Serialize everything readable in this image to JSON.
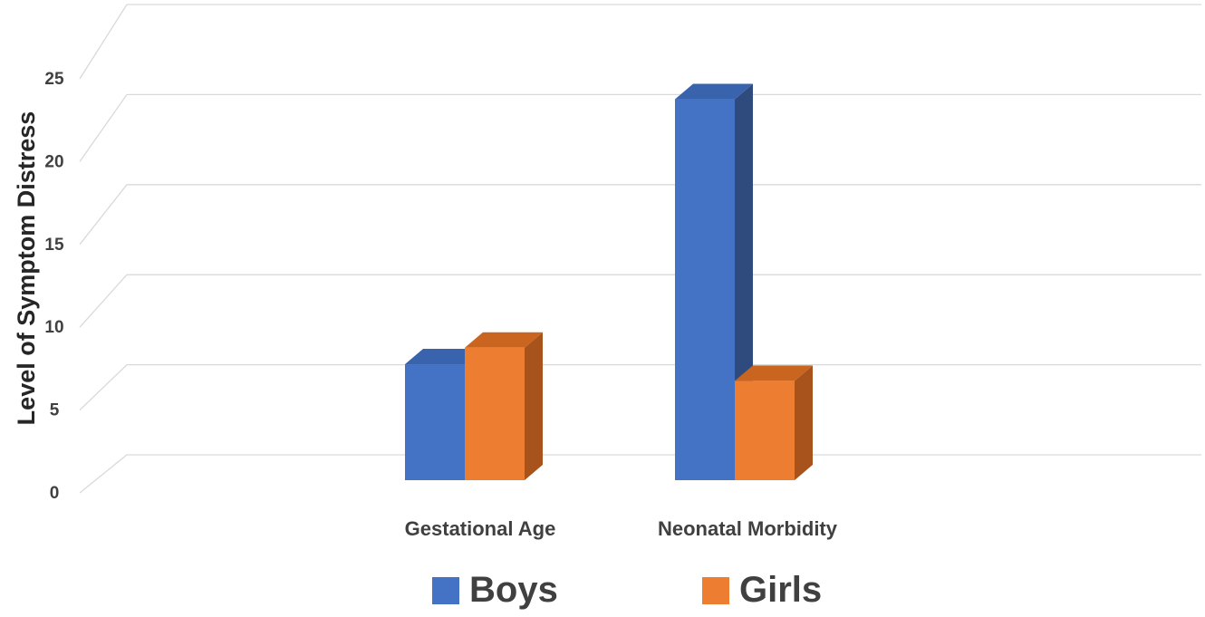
{
  "chart_data": {
    "type": "bar",
    "title": "",
    "xlabel": "",
    "ylabel": "Level of Symptom Distress",
    "categories": [
      "Gestational Age",
      "Neonatal Morbidity"
    ],
    "series": [
      {
        "name": "Boys",
        "values": [
          7,
          23
        ],
        "color": "#4472C4",
        "side_color": "#2F4B7D",
        "top_color": "#3A63AE"
      },
      {
        "name": "Girls",
        "values": [
          8,
          6
        ],
        "color": "#ED7D31",
        "side_color": "#A8531C",
        "top_color": "#C9651F"
      }
    ],
    "yticks": [
      "0",
      "5",
      "10",
      "15",
      "20",
      "25"
    ],
    "ylim": [
      0,
      25
    ],
    "grid": true,
    "legend_position": "bottom",
    "style": "3d-column"
  }
}
